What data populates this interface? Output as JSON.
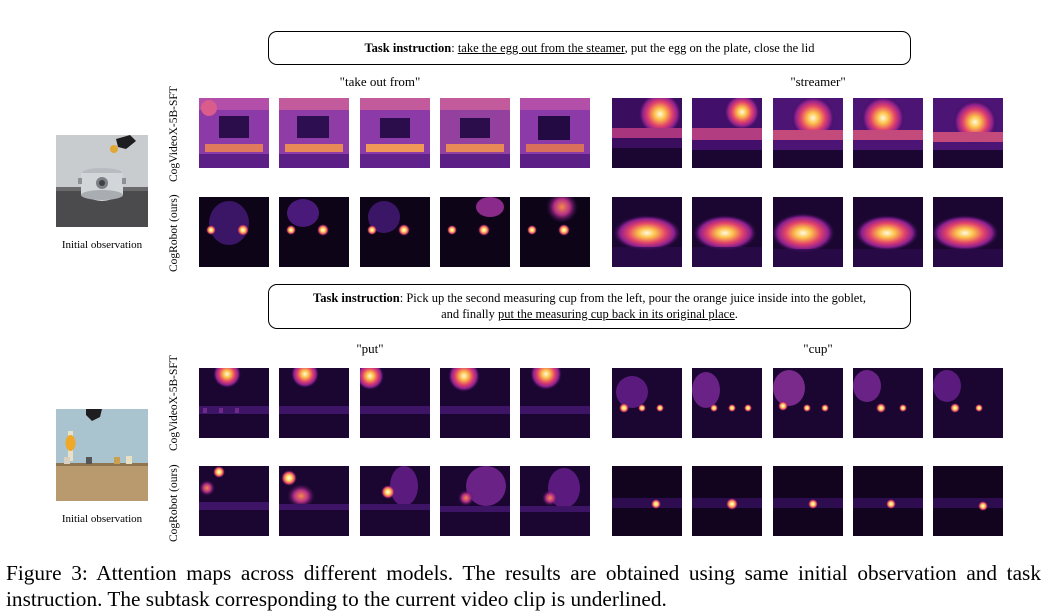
{
  "panel1": {
    "instruction_label": "Task instruction",
    "instruction_sep": ": ",
    "instruction_underlined": "take the egg out from the steamer",
    "instruction_rest": ", put the egg on the plate, close the lid",
    "word_left": "\"take out from\"",
    "word_right": "\"streamer\"",
    "row1_label": "CogVideoX-5B-SFT",
    "row2_label": "CogRobot (ours)",
    "obs_caption": "Initial observation"
  },
  "panel2": {
    "instruction_label": "Task instruction",
    "instruction_line1": ": Pick up the second measuring cup from the left, pour the orange juice inside into the goblet,",
    "instruction_line2_pre": "and finally ",
    "instruction_underlined": "put the measuring cup back in its original place",
    "instruction_line2_post": ".",
    "word_left": "\"put\"",
    "word_right": "\"cup\"",
    "row1_label": "CogVideoX-5B-SFT",
    "row2_label": "CogRobot (ours)",
    "obs_caption": "Initial observation"
  },
  "figure_caption": "Figure 3: Attention maps across different models. The results are obtained using same initial observation and task instruction. The subtask corresponding to the current video clip is underlined."
}
